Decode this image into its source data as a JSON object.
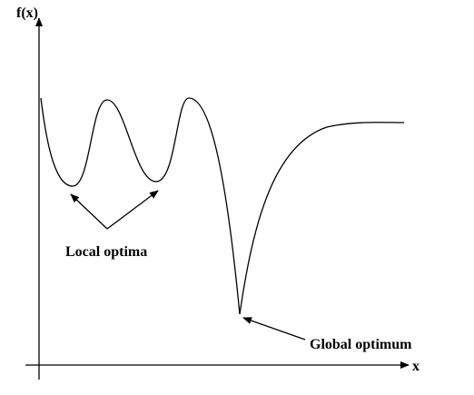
{
  "axes": {
    "y_label": "f(x)",
    "x_label": "x"
  },
  "annotations": {
    "local": "Local optima",
    "global": "Global optimum"
  },
  "colors": {
    "ink": "#000000",
    "background": "#ffffff"
  }
}
